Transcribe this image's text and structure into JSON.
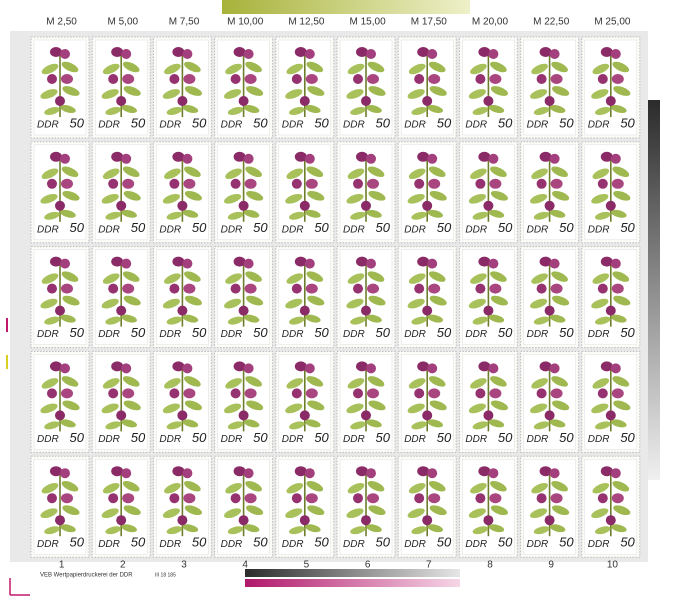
{
  "sheet": {
    "top_labels": [
      "M 2,50",
      "M 5,00",
      "M 7,50",
      "M 10,00",
      "M 12,50",
      "M 15,00",
      "M 17,50",
      "M 20,00",
      "M 22,50",
      "M 25,00"
    ],
    "bottom_numbers": [
      "1",
      "2",
      "3",
      "4",
      "5",
      "6",
      "7",
      "8",
      "9",
      "10"
    ],
    "imprint": "VEB Wertpapierdruckerei der DDR",
    "print_code": "III 18 185",
    "stamp": {
      "country": "DDR",
      "denomination": "50"
    }
  }
}
